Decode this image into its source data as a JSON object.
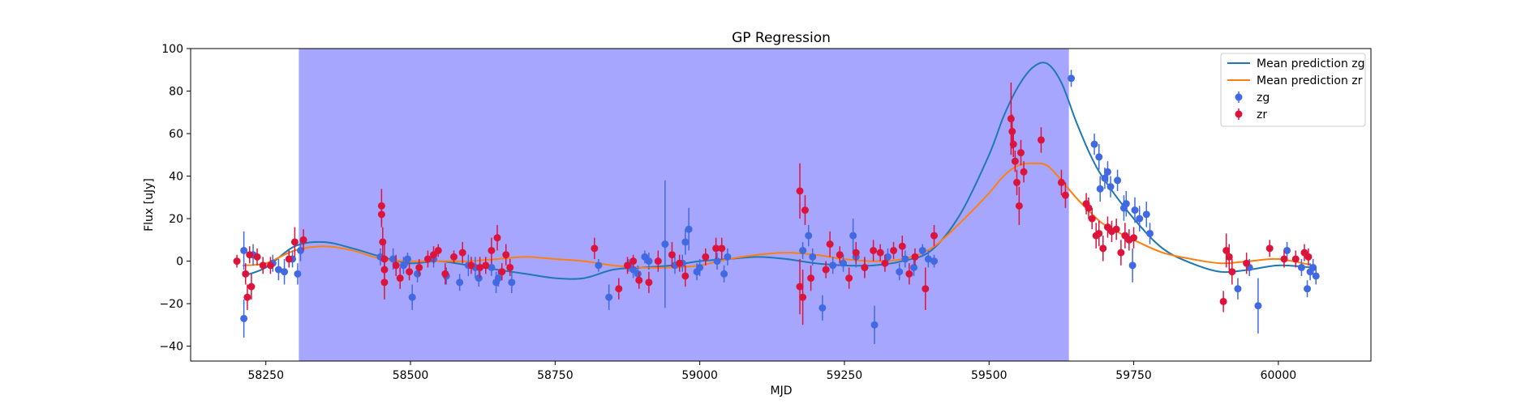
{
  "chart_data": {
    "type": "scatter",
    "title": "GP Regression",
    "xlabel": "MJD",
    "ylabel": "Flux [uJy]",
    "xlim": [
      58120,
      60160
    ],
    "ylim": [
      -47,
      100
    ],
    "xticks": [
      58250,
      58500,
      58750,
      59000,
      59250,
      59500,
      59750,
      60000
    ],
    "yticks": [
      -40,
      -20,
      0,
      20,
      40,
      60,
      80,
      100
    ],
    "grid": false,
    "legend_position": "top-right",
    "shaded_region": {
      "x_start": 58307,
      "x_end": 59638,
      "color": "#a6a6ff"
    },
    "colors": {
      "zg_points": "#4169e1",
      "zr_points": "#dc143c",
      "zg_line": "#1f77b4",
      "zr_line": "#ff7f0e"
    },
    "lines": [
      {
        "name": "Mean prediction zg",
        "x": [
          58210,
          58250,
          58300,
          58350,
          58400,
          58450,
          58500,
          58550,
          58600,
          58650,
          58700,
          58750,
          58800,
          58850,
          58900,
          58950,
          59000,
          59050,
          59100,
          59150,
          59200,
          59250,
          59300,
          59350,
          59400,
          59450,
          59500,
          59525,
          59550,
          59575,
          59600,
          59625,
          59650,
          59675,
          59700,
          59750,
          59800,
          59850,
          59900,
          59950,
          60000,
          60060
        ],
        "y": [
          -7,
          -3,
          7,
          9,
          6,
          2,
          -1,
          0,
          -2,
          -4,
          -6,
          -8,
          -8,
          -4,
          -3,
          -2,
          0,
          1,
          2,
          1,
          -1,
          -2,
          -2,
          0,
          5,
          22,
          50,
          68,
          82,
          91,
          93,
          84,
          66,
          50,
          38,
          20,
          6,
          -1,
          -5,
          -4,
          -2,
          -3
        ]
      },
      {
        "name": "Mean prediction zr",
        "x": [
          58210,
          58250,
          58300,
          58350,
          58400,
          58450,
          58500,
          58550,
          58600,
          58650,
          58700,
          58750,
          58800,
          58850,
          58900,
          58950,
          59000,
          59050,
          59100,
          59150,
          59200,
          59250,
          59300,
          59350,
          59400,
          59450,
          59500,
          59525,
          59550,
          59575,
          59600,
          59625,
          59650,
          59675,
          59700,
          59750,
          59800,
          59850,
          59900,
          59950,
          60000,
          60060
        ],
        "y": [
          -2,
          -1,
          5,
          7,
          5,
          1,
          0,
          0,
          0,
          1,
          2,
          1,
          0,
          -2,
          -3,
          -3,
          -2,
          1,
          3,
          4,
          3,
          1,
          0,
          1,
          6,
          18,
          32,
          40,
          45,
          46,
          45,
          38,
          30,
          23,
          17,
          10,
          4,
          1,
          -1,
          0,
          1,
          -2
        ]
      }
    ],
    "series": [
      {
        "name": "zg",
        "points": [
          [
            58212,
            -27,
            9
          ],
          [
            58212,
            5,
            9
          ],
          [
            58228,
            3,
            5
          ],
          [
            58262,
            -1,
            4
          ],
          [
            58272,
            -4,
            5
          ],
          [
            58282,
            -5,
            6
          ],
          [
            58296,
            1,
            4
          ],
          [
            58305,
            -6,
            5
          ],
          [
            58310,
            5,
            5
          ],
          [
            58448,
            2,
            4
          ],
          [
            58470,
            1,
            5
          ],
          [
            58488,
            -2,
            4
          ],
          [
            58495,
            1,
            3
          ],
          [
            58503,
            -17,
            6
          ],
          [
            58512,
            -6,
            4
          ],
          [
            58540,
            1,
            4
          ],
          [
            58562,
            -7,
            4
          ],
          [
            58585,
            -10,
            4
          ],
          [
            58600,
            -2,
            5
          ],
          [
            58612,
            -3,
            5
          ],
          [
            58618,
            -8,
            4
          ],
          [
            58640,
            -3,
            4
          ],
          [
            58648,
            -10,
            5
          ],
          [
            58652,
            -8,
            4
          ],
          [
            58658,
            -5,
            4
          ],
          [
            58675,
            -10,
            5
          ],
          [
            58825,
            -2,
            3
          ],
          [
            58843,
            -17,
            6
          ],
          [
            58877,
            -2,
            3
          ],
          [
            58885,
            -4,
            4
          ],
          [
            58893,
            -6,
            4
          ],
          [
            58905,
            2,
            3
          ],
          [
            58912,
            0,
            4
          ],
          [
            58940,
            8,
            30
          ],
          [
            58957,
            -2,
            4
          ],
          [
            58970,
            -1,
            4
          ],
          [
            58975,
            9,
            6
          ],
          [
            58981,
            15,
            10
          ],
          [
            58995,
            -5,
            4
          ],
          [
            59000,
            -3,
            4
          ],
          [
            59030,
            0,
            4
          ],
          [
            59042,
            -6,
            4
          ],
          [
            59048,
            2,
            4
          ],
          [
            59178,
            5,
            4
          ],
          [
            59188,
            12,
            5
          ],
          [
            59195,
            2,
            4
          ],
          [
            59212,
            -22,
            6
          ],
          [
            59230,
            -2,
            4
          ],
          [
            59248,
            -1,
            4
          ],
          [
            59265,
            12,
            8
          ],
          [
            59270,
            2,
            5
          ],
          [
            59285,
            -3,
            4
          ],
          [
            59302,
            -30,
            9
          ],
          [
            59325,
            2,
            4
          ],
          [
            59345,
            -5,
            4
          ],
          [
            59355,
            1,
            4
          ],
          [
            59370,
            -3,
            4
          ],
          [
            59385,
            5,
            3
          ],
          [
            59395,
            1,
            4
          ],
          [
            59405,
            0,
            3
          ],
          [
            59642,
            86,
            4
          ],
          [
            59682,
            55,
            5
          ],
          [
            59690,
            49,
            6
          ],
          [
            59692,
            34,
            6
          ],
          [
            59700,
            39,
            5
          ],
          [
            59705,
            42,
            5
          ],
          [
            59710,
            35,
            5
          ],
          [
            59722,
            38,
            5
          ],
          [
            59733,
            25,
            6
          ],
          [
            59737,
            27,
            6
          ],
          [
            59748,
            -2,
            8
          ],
          [
            59752,
            24,
            6
          ],
          [
            59760,
            20,
            6
          ],
          [
            59772,
            22,
            6
          ],
          [
            59778,
            13,
            5
          ],
          [
            59930,
            -13,
            5
          ],
          [
            59950,
            -3,
            4
          ],
          [
            59965,
            -21,
            13
          ],
          [
            60015,
            5,
            4
          ],
          [
            60040,
            -3,
            4
          ],
          [
            60050,
            -13,
            4
          ],
          [
            60055,
            -5,
            4
          ],
          [
            60060,
            -3,
            4
          ],
          [
            60065,
            -7,
            4
          ]
        ]
      },
      {
        "name": "zr",
        "points": [
          [
            58200,
            0,
            3
          ],
          [
            58215,
            -6,
            5
          ],
          [
            58218,
            -17,
            6
          ],
          [
            58222,
            3,
            4
          ],
          [
            58225,
            -12,
            6
          ],
          [
            58235,
            2,
            4
          ],
          [
            58245,
            -2,
            4
          ],
          [
            58258,
            -2,
            4
          ],
          [
            58290,
            1,
            4
          ],
          [
            58300,
            9,
            7
          ],
          [
            58315,
            10,
            5
          ],
          [
            58450,
            26,
            8
          ],
          [
            58450,
            22,
            6
          ],
          [
            58452,
            9,
            7
          ],
          [
            58455,
            1,
            7
          ],
          [
            58455,
            -4,
            6
          ],
          [
            58455,
            -10,
            8
          ],
          [
            58475,
            -2,
            5
          ],
          [
            58482,
            -8,
            5
          ],
          [
            58498,
            -5,
            4
          ],
          [
            58515,
            -3,
            4
          ],
          [
            58530,
            1,
            4
          ],
          [
            58540,
            3,
            4
          ],
          [
            58548,
            5,
            3
          ],
          [
            58560,
            -6,
            5
          ],
          [
            58575,
            2,
            3
          ],
          [
            58590,
            4,
            5
          ],
          [
            58605,
            -2,
            4
          ],
          [
            58620,
            -3,
            5
          ],
          [
            58630,
            -2,
            4
          ],
          [
            58640,
            5,
            6
          ],
          [
            58650,
            11,
            6
          ],
          [
            58658,
            -5,
            4
          ],
          [
            58665,
            3,
            5
          ],
          [
            58672,
            -3,
            4
          ],
          [
            58818,
            6,
            5
          ],
          [
            58860,
            -13,
            5
          ],
          [
            58875,
            -2,
            4
          ],
          [
            58885,
            0,
            3
          ],
          [
            58895,
            -9,
            4
          ],
          [
            58912,
            -10,
            5
          ],
          [
            58928,
            0,
            5
          ],
          [
            58952,
            3,
            6
          ],
          [
            58965,
            -1,
            4
          ],
          [
            58975,
            -7,
            5
          ],
          [
            59010,
            2,
            4
          ],
          [
            59028,
            6,
            5
          ],
          [
            59038,
            6,
            5
          ],
          [
            59173,
            33,
            13
          ],
          [
            59173,
            -12,
            13
          ],
          [
            59178,
            -17,
            13
          ],
          [
            59182,
            24,
            7
          ],
          [
            59192,
            -8,
            6
          ],
          [
            59218,
            -4,
            4
          ],
          [
            59225,
            8,
            6
          ],
          [
            59242,
            3,
            4
          ],
          [
            59258,
            -8,
            5
          ],
          [
            59270,
            4,
            5
          ],
          [
            59285,
            -3,
            5
          ],
          [
            59300,
            5,
            5
          ],
          [
            59312,
            4,
            4
          ],
          [
            59320,
            -1,
            4
          ],
          [
            59335,
            5,
            4
          ],
          [
            59350,
            7,
            5
          ],
          [
            59362,
            -6,
            5
          ],
          [
            59372,
            2,
            4
          ],
          [
            59390,
            -13,
            10
          ],
          [
            59405,
            12,
            5
          ],
          [
            59538,
            67,
            17
          ],
          [
            59540,
            61,
            8
          ],
          [
            59542,
            55,
            6
          ],
          [
            59545,
            47,
            5
          ],
          [
            59548,
            37,
            6
          ],
          [
            59552,
            26,
            9
          ],
          [
            59555,
            51,
            6
          ],
          [
            59560,
            42,
            5
          ],
          [
            59590,
            57,
            6
          ],
          [
            59625,
            37,
            6
          ],
          [
            59632,
            31,
            6
          ],
          [
            59668,
            27,
            5
          ],
          [
            59672,
            25,
            5
          ],
          [
            59678,
            20,
            5
          ],
          [
            59685,
            12,
            6
          ],
          [
            59690,
            13,
            6
          ],
          [
            59697,
            6,
            6
          ],
          [
            59705,
            16,
            5
          ],
          [
            59712,
            14,
            5
          ],
          [
            59720,
            15,
            5
          ],
          [
            59728,
            4,
            6
          ],
          [
            59735,
            12,
            6
          ],
          [
            59742,
            10,
            5
          ],
          [
            59750,
            11,
            5
          ],
          [
            59905,
            -19,
            5
          ],
          [
            59910,
            5,
            8
          ],
          [
            59915,
            2,
            6
          ],
          [
            59920,
            -5,
            6
          ],
          [
            59945,
            -1,
            5
          ],
          [
            59985,
            6,
            4
          ],
          [
            60010,
            1,
            4
          ],
          [
            60030,
            1,
            4
          ],
          [
            60045,
            4,
            4
          ],
          [
            60052,
            2,
            4
          ]
        ]
      }
    ],
    "legend": [
      {
        "label": "Mean prediction zg",
        "kind": "line",
        "series": "zg_line"
      },
      {
        "label": "Mean prediction zr",
        "kind": "line",
        "series": "zr_line"
      },
      {
        "label": "zg",
        "kind": "errorbar",
        "series": "zg_points"
      },
      {
        "label": "zr",
        "kind": "errorbar",
        "series": "zr_points"
      }
    ]
  }
}
